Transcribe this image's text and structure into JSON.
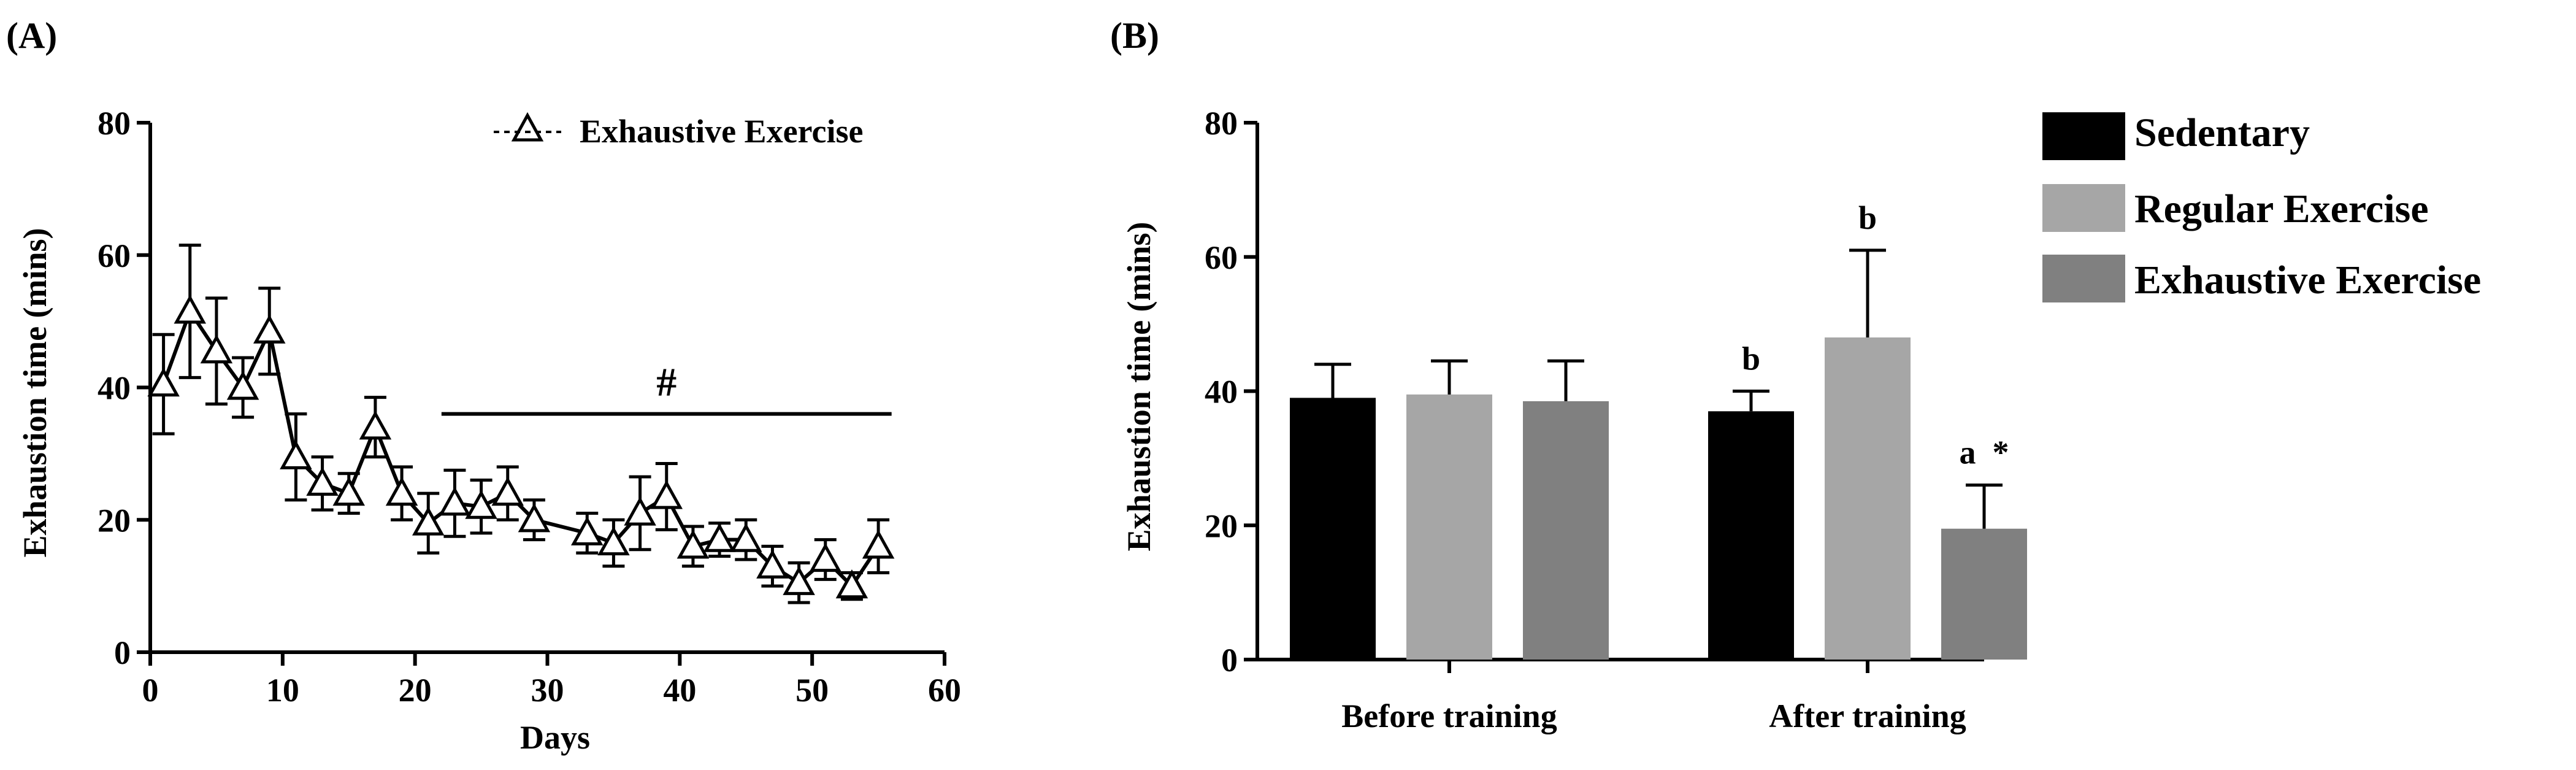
{
  "chart_data": [
    {
      "panel": "(A)",
      "type": "line",
      "xlabel": "Days",
      "ylabel": "Exhaustion time (mins)",
      "xlim": [
        0,
        60
      ],
      "ylim": [
        0,
        80
      ],
      "xticks": [
        "0",
        "10",
        "20",
        "30",
        "40",
        "50",
        "60"
      ],
      "yticks": [
        "0",
        "20",
        "40",
        "60",
        "80"
      ],
      "legend": [
        {
          "label": "Exhaustive Exercise",
          "marker": "△"
        }
      ],
      "legend_position": "top-right",
      "annotation": {
        "text": "#",
        "x_start": 22,
        "x_end": 56,
        "y": 36
      },
      "series": [
        {
          "name": "Exhaustive Exercise",
          "x": [
            1,
            3,
            5,
            7,
            9,
            11,
            13,
            15,
            17,
            19,
            21,
            23,
            25,
            27,
            29,
            33,
            35,
            37,
            39,
            41,
            43,
            45,
            47,
            49,
            51,
            53,
            55
          ],
          "y": [
            40.5,
            51.5,
            45.5,
            40,
            48.5,
            29.5,
            25.5,
            24,
            34,
            24,
            19.5,
            22.5,
            22,
            24,
            20,
            18,
            16.5,
            21,
            23.5,
            16,
            17,
            17,
            13,
            10.5,
            14,
            10,
            16
          ],
          "err": [
            7.5,
            10,
            8,
            4.5,
            6.5,
            6.5,
            4,
            3,
            4.5,
            4,
            4.5,
            5,
            4,
            4,
            3,
            3,
            3.5,
            5.5,
            5,
            3,
            2.5,
            3,
            3,
            3,
            3,
            2,
            4
          ]
        }
      ]
    },
    {
      "panel": "(B)",
      "type": "bar",
      "ylabel": "Exhaustion time (mins)",
      "ylim": [
        0,
        80
      ],
      "yticks": [
        "0",
        "20",
        "40",
        "60",
        "80"
      ],
      "categories": [
        "Before training",
        "After training"
      ],
      "legend_position": "top-right",
      "series": [
        {
          "name": "Sedentary",
          "color": "#000000",
          "values": [
            39,
            37
          ],
          "err": [
            5,
            3
          ],
          "labels": [
            "",
            "b"
          ]
        },
        {
          "name": "Regular Exercise",
          "color": "#a6a6a6",
          "values": [
            39.5,
            48
          ],
          "err": [
            5,
            13
          ],
          "labels": [
            "",
            "b"
          ]
        },
        {
          "name": "Exhaustive Exercise",
          "color": "#808080",
          "values": [
            38.5,
            19.5
          ],
          "err": [
            6,
            6.5
          ],
          "labels": [
            "",
            "a  *"
          ]
        }
      ]
    }
  ]
}
